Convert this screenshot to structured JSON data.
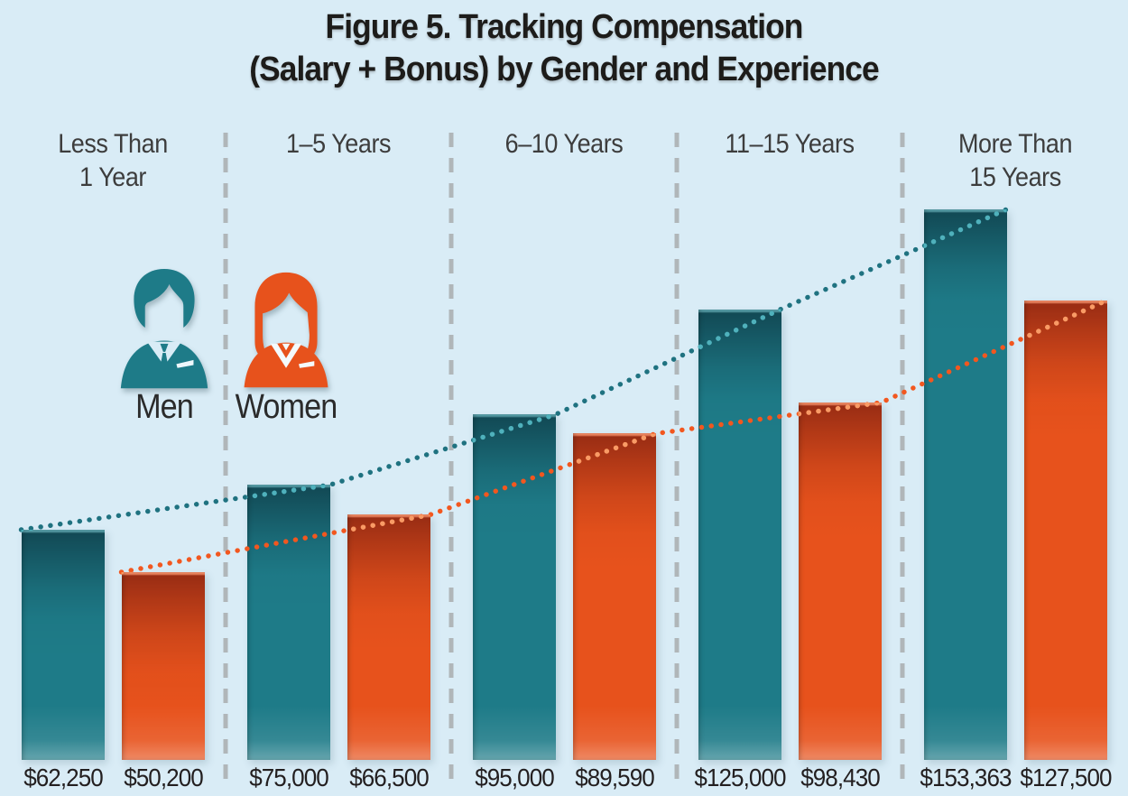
{
  "title": {
    "line1": "Figure 5. Tracking Compensation",
    "line2": "(Salary + Bonus) by Gender and Experience"
  },
  "legend": {
    "men_label": "Men",
    "women_label": "Women"
  },
  "colors": {
    "background": "#d9ecf6",
    "men_bar": "#1e7b88",
    "women_bar": "#e7521c",
    "men_trend_dot": "#1f7280",
    "women_trend_dot": "#f2571f",
    "men_trend_dot_on_bar": "#4fb1bc",
    "women_trend_dot_on_bar": "#f89b66",
    "divider": "#b0b6b9",
    "title_text": "#1d1c1a",
    "category_text": "#3d3d3d",
    "value_text": "#231f20"
  },
  "chart_data": {
    "type": "bar",
    "title": "Figure 5. Tracking Compensation (Salary + Bonus) by Gender and Experience",
    "categories": [
      "Less Than 1 Year",
      "1–5 Years",
      "6–10 Years",
      "11–15 Years",
      "More Than 15 Years"
    ],
    "category_lines": [
      [
        "Less Than",
        "1 Year"
      ],
      [
        "1–5 Years"
      ],
      [
        "6–10 Years"
      ],
      [
        "11–15 Years"
      ],
      [
        "More Than",
        "15 Years"
      ]
    ],
    "series": [
      {
        "name": "Men",
        "color": "#1e7b88",
        "values": [
          62250,
          75000,
          95000,
          125000,
          153363
        ],
        "value_labels": [
          "$62,250",
          "$75,000",
          "$95,000",
          "$125,000",
          "$153,363"
        ]
      },
      {
        "name": "Women",
        "color": "#e7521c",
        "values": [
          50200,
          66500,
          89590,
          98430,
          127500
        ],
        "value_labels": [
          "$50,200",
          "$66,500",
          "$89,590",
          "$98,430",
          "$127,500"
        ]
      }
    ],
    "value_prefix": "$",
    "ylim": [
      0,
      160000
    ],
    "grid": false,
    "axes_shown": false,
    "legend_position": "inside upper-left, person icons",
    "trend_lines": "dotted line per series tracing bar tops",
    "group_dividers": "dashed vertical lines between experience groups"
  }
}
